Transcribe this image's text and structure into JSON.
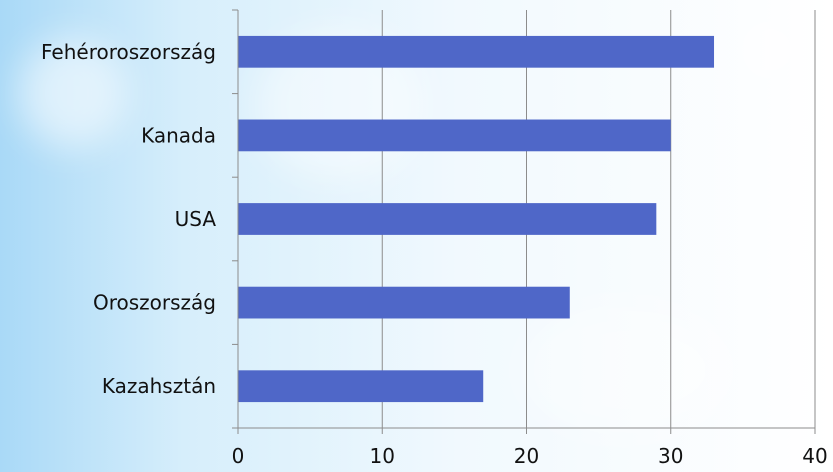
{
  "chart_data": {
    "type": "bar",
    "orientation": "horizontal",
    "categories": [
      "Fehéroroszország",
      "Kanada",
      "USA",
      "Oroszország",
      "Kazahsztán"
    ],
    "values": [
      33,
      30,
      29,
      23,
      17
    ],
    "xlim": [
      0,
      40
    ],
    "x_ticks": [
      0,
      10,
      20,
      30,
      40
    ],
    "grid": "vertical major gridlines",
    "legend": "none",
    "colors": {
      "bar": "#4f67c8",
      "grid": "#8c8c8c",
      "text": "#111111"
    }
  }
}
